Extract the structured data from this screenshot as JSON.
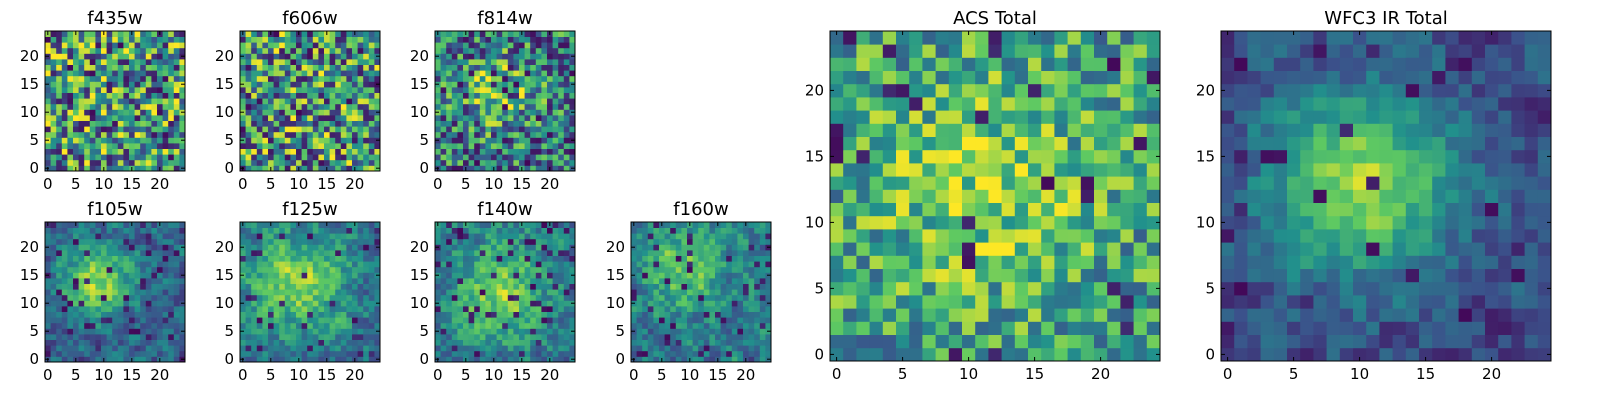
{
  "figure": {
    "colormap": [
      "#440154",
      "#3b528b",
      "#21918c",
      "#5ec962",
      "#fde725"
    ]
  },
  "chart_data": [
    {
      "type": "heatmap",
      "title": "f435w",
      "grid": [
        25,
        25
      ],
      "xticks": [
        0,
        5,
        10,
        15,
        20
      ],
      "yticks": [
        0,
        5,
        10,
        15,
        20
      ],
      "xlim": [
        0,
        24
      ],
      "ylim": [
        0,
        24
      ],
      "grid_lines": false,
      "legend": "none"
    },
    {
      "type": "heatmap",
      "title": "f606w",
      "grid": [
        25,
        25
      ],
      "xticks": [
        0,
        5,
        10,
        15,
        20
      ],
      "yticks": [
        0,
        5,
        10,
        15,
        20
      ],
      "xlim": [
        0,
        24
      ],
      "ylim": [
        0,
        24
      ],
      "grid_lines": false,
      "legend": "none"
    },
    {
      "type": "heatmap",
      "title": "f814w",
      "grid": [
        25,
        25
      ],
      "xticks": [
        0,
        5,
        10,
        15,
        20
      ],
      "yticks": [
        0,
        5,
        10,
        15,
        20
      ],
      "xlim": [
        0,
        24
      ],
      "ylim": [
        0,
        24
      ],
      "grid_lines": false,
      "legend": "none"
    },
    {
      "type": "heatmap",
      "title": "f105w",
      "grid": [
        25,
        25
      ],
      "xticks": [
        0,
        5,
        10,
        15,
        20
      ],
      "yticks": [
        0,
        5,
        10,
        15,
        20
      ],
      "xlim": [
        0,
        24
      ],
      "ylim": [
        0,
        24
      ],
      "grid_lines": false,
      "legend": "none"
    },
    {
      "type": "heatmap",
      "title": "f125w",
      "grid": [
        25,
        25
      ],
      "xticks": [
        0,
        5,
        10,
        15,
        20
      ],
      "yticks": [
        0,
        5,
        10,
        15,
        20
      ],
      "xlim": [
        0,
        24
      ],
      "ylim": [
        0,
        24
      ],
      "grid_lines": false,
      "legend": "none"
    },
    {
      "type": "heatmap",
      "title": "f140w",
      "grid": [
        25,
        25
      ],
      "xticks": [
        0,
        5,
        10,
        15,
        20
      ],
      "yticks": [
        0,
        5,
        10,
        15,
        20
      ],
      "xlim": [
        0,
        24
      ],
      "ylim": [
        0,
        24
      ],
      "grid_lines": false,
      "legend": "none"
    },
    {
      "type": "heatmap",
      "title": "f160w",
      "grid": [
        25,
        25
      ],
      "xticks": [
        0,
        5,
        10,
        15,
        20
      ],
      "yticks": [
        0,
        5,
        10,
        15,
        20
      ],
      "xlim": [
        0,
        24
      ],
      "ylim": [
        0,
        24
      ],
      "grid_lines": false,
      "legend": "none"
    },
    {
      "type": "heatmap",
      "title": "ACS Total",
      "grid": [
        25,
        25
      ],
      "xticks": [
        0,
        5,
        10,
        15,
        20
      ],
      "yticks": [
        0,
        5,
        10,
        15,
        20
      ],
      "xlim": [
        0,
        24
      ],
      "ylim": [
        0,
        24
      ],
      "grid_lines": false,
      "legend": "none"
    },
    {
      "type": "heatmap",
      "title": "WFC3 IR Total",
      "grid": [
        25,
        25
      ],
      "xticks": [
        0,
        5,
        10,
        15,
        20
      ],
      "yticks": [
        0,
        5,
        10,
        15,
        20
      ],
      "xlim": [
        0,
        24
      ],
      "ylim": [
        0,
        24
      ],
      "grid_lines": false,
      "legend": "none"
    }
  ]
}
